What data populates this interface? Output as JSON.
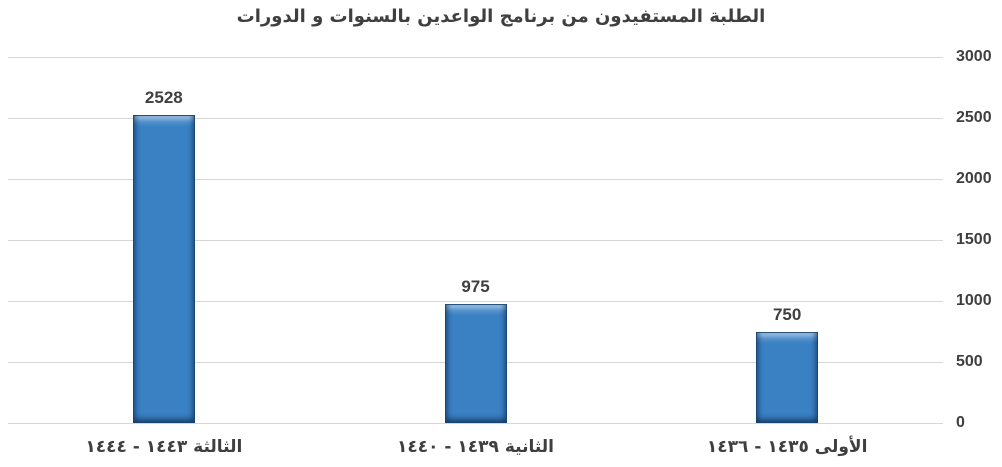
{
  "chart_data": {
    "type": "bar",
    "title": "الطلبة المستفيدون من برنامج الواعدين بالسنوات و الدورات",
    "categories": [
      "الثالثة ١٤٤٣ - ١٤٤٤",
      "الثانية ١٤٣٩ - ١٤٤٠",
      "الأولى ١٤٣٥ - ١٤٣٦"
    ],
    "values": [
      2528,
      975,
      750
    ],
    "data_labels": [
      "2528",
      "975",
      "750"
    ],
    "xlabel": "",
    "ylabel": "",
    "ylim": [
      0,
      3000
    ],
    "y_ticks": [
      0,
      500,
      1000,
      1500,
      2000,
      2500,
      3000
    ],
    "y_tick_labels": [
      "0",
      "500",
      "1000",
      "1500",
      "2000",
      "2500",
      "3000"
    ],
    "y_axis_side": "right",
    "rtl": true,
    "grid": true,
    "legend": false,
    "colors": {
      "bar": "#3a81c4",
      "bar_edge": "#1d578f",
      "grid": "#d6d6d6",
      "text": "#3f3f3f",
      "background": "#ffffff"
    }
  }
}
